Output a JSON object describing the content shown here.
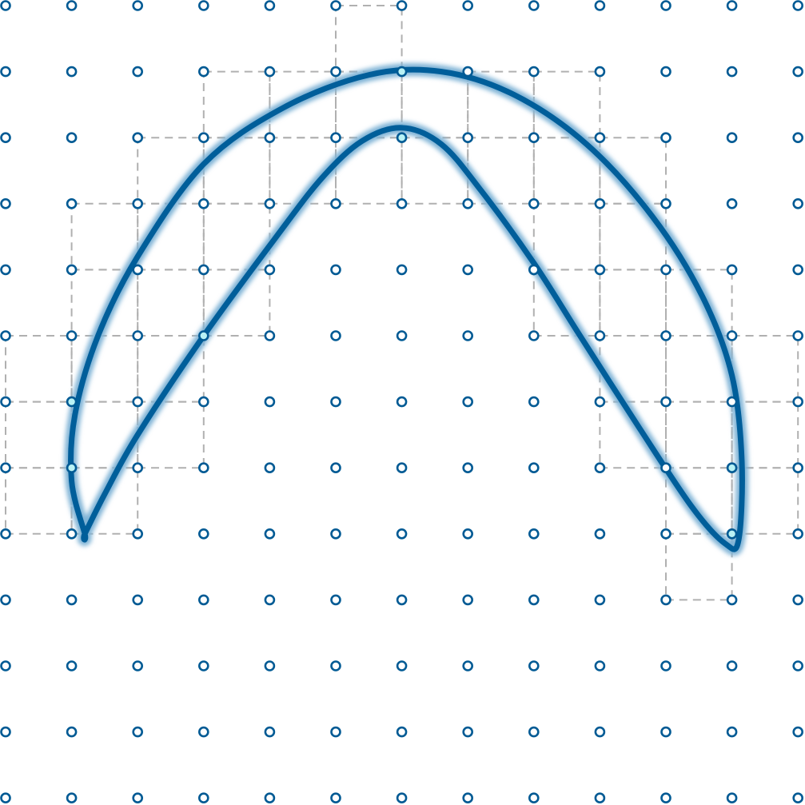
{
  "diagram": {
    "kind": "marching-squares contour over dot lattice",
    "colors": {
      "background": "#ffffff",
      "dashed_cells": "#b0b0b0",
      "node_stroke": "#005a94",
      "node_fill": "#ffffff",
      "node_fill_on_curve": "#b9f2f5",
      "curve": "#005e9a",
      "curve_glow": "#7fb3d6"
    },
    "lattice": {
      "columns": 13,
      "rows": 13
    },
    "active_cells": [
      [
        5,
        0
      ],
      [
        3,
        1
      ],
      [
        4,
        1
      ],
      [
        5,
        1
      ],
      [
        6,
        1
      ],
      [
        7,
        1
      ],
      [
        8,
        1
      ],
      [
        2,
        2
      ],
      [
        3,
        2
      ],
      [
        4,
        2
      ],
      [
        5,
        2
      ],
      [
        6,
        2
      ],
      [
        7,
        2
      ],
      [
        8,
        2
      ],
      [
        9,
        2
      ],
      [
        1,
        3
      ],
      [
        2,
        3
      ],
      [
        3,
        3
      ],
      [
        8,
        3
      ],
      [
        9,
        3
      ],
      [
        1,
        4
      ],
      [
        2,
        4
      ],
      [
        3,
        4
      ],
      [
        8,
        4
      ],
      [
        9,
        4
      ],
      [
        10,
        4
      ],
      [
        0,
        5
      ],
      [
        1,
        5
      ],
      [
        2,
        5
      ],
      [
        9,
        5
      ],
      [
        10,
        5
      ],
      [
        11,
        5
      ],
      [
        0,
        6
      ],
      [
        1,
        6
      ],
      [
        2,
        6
      ],
      [
        9,
        6
      ],
      [
        10,
        6
      ],
      [
        11,
        6
      ],
      [
        0,
        7
      ],
      [
        1,
        7
      ],
      [
        10,
        7
      ],
      [
        11,
        7
      ],
      [
        10,
        8
      ]
    ],
    "on_curve_nodes": [
      [
        6,
        1
      ],
      [
        6,
        2
      ],
      [
        3,
        5
      ],
      [
        1,
        6
      ],
      [
        1,
        7
      ],
      [
        11,
        7
      ],
      [
        11,
        8
      ]
    ],
    "outer_arc_nodes": [
      [
        1.2,
        8.0
      ],
      [
        1.0,
        7.2
      ],
      [
        1.05,
        6.2
      ],
      [
        1.4,
        5.0
      ],
      [
        2.0,
        3.8
      ],
      [
        3.0,
        2.4
      ],
      [
        4.2,
        1.55
      ],
      [
        5.5,
        1.05
      ],
      [
        6.6,
        1.0
      ],
      [
        7.7,
        1.35
      ],
      [
        8.8,
        2.1
      ],
      [
        9.8,
        3.2
      ],
      [
        10.55,
        4.4
      ],
      [
        11.0,
        5.6
      ],
      [
        11.15,
        6.9
      ],
      [
        11.1,
        8.1
      ]
    ],
    "inner_arc_nodes": [
      [
        10.9,
        8.15
      ],
      [
        10.4,
        7.6
      ],
      [
        9.6,
        6.4
      ],
      [
        8.7,
        5.0
      ],
      [
        8.0,
        3.9
      ],
      [
        7.2,
        2.8
      ],
      [
        6.6,
        2.1
      ],
      [
        6.0,
        1.85
      ],
      [
        5.4,
        2.05
      ],
      [
        4.8,
        2.6
      ],
      [
        4.1,
        3.5
      ],
      [
        3.0,
        5.0
      ],
      [
        2.0,
        6.5
      ],
      [
        1.5,
        7.4
      ],
      [
        1.2,
        8.0
      ]
    ]
  }
}
